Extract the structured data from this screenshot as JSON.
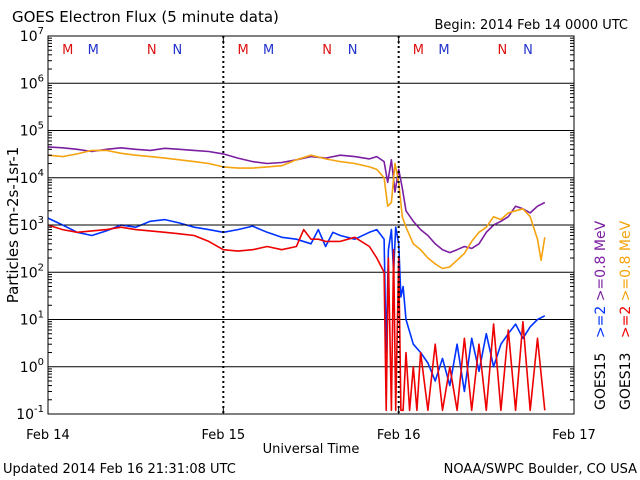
{
  "title": "GOES Electron Flux (5 minute data)",
  "begin_label": "Begin: 2014 Feb 14 0000 UTC",
  "updated_label": "Updated 2014 Feb 16 21:31:08 UTC",
  "credit_label": "NOAA/SWPC Boulder, CO USA",
  "colors": {
    "purple": "#7B1FA2",
    "orange": "#F5A30E",
    "blue": "#0033FF",
    "red": "#EE0000",
    "mn_blue": "#2233CC",
    "mn_red": "#DD1111"
  },
  "chart_data": {
    "type": "line",
    "title": "GOES Electron Flux (5 minute data)",
    "xlabel": "Universal Time",
    "ylabel": "Particles cm-2s-1sr-1",
    "y_scale": "log",
    "ylim": [
      0.1,
      10000000
    ],
    "xlim": [
      0,
      72
    ],
    "x_unit": "hours since 2014 Feb 14 0000 UTC",
    "x_ticks": [
      {
        "x": 0,
        "label": "Feb 14"
      },
      {
        "x": 24,
        "label": "Feb 15"
      },
      {
        "x": 48,
        "label": "Feb 16"
      },
      {
        "x": 72,
        "label": "Feb 17"
      }
    ],
    "y_ticks": [
      {
        "value": 0.1,
        "base": "10",
        "exp": "-1"
      },
      {
        "value": 1,
        "base": "10",
        "exp": "0"
      },
      {
        "value": 10,
        "base": "10",
        "exp": "1"
      },
      {
        "value": 100,
        "base": "10",
        "exp": "2"
      },
      {
        "value": 1000,
        "base": "10",
        "exp": "3"
      },
      {
        "value": 10000,
        "base": "10",
        "exp": "4"
      },
      {
        "value": 100000,
        "base": "10",
        "exp": "5"
      },
      {
        "value": 1000000,
        "base": "10",
        "exp": "6"
      },
      {
        "value": 10000000,
        "base": "10",
        "exp": "7"
      }
    ],
    "threshold": 1000,
    "grid": true,
    "legend": [
      {
        "label": "GOES15",
        "color": "#000000"
      },
      {
        "label": ">=2",
        "color": "#0033FF"
      },
      {
        "label": ">=0.8 MeV",
        "color": "#7B1FA2"
      },
      {
        "label": "GOES13",
        "color": "#000000"
      },
      {
        "label": ">=2",
        "color": "#EE0000"
      },
      {
        "label": ">=0.8 MeV",
        "color": "#F5A30E"
      }
    ],
    "mn_markers": [
      {
        "x": 2.7,
        "label": "M",
        "color": "#DD1111"
      },
      {
        "x": 6.2,
        "label": "M",
        "color": "#2233CC"
      },
      {
        "x": 14.2,
        "label": "N",
        "color": "#DD1111"
      },
      {
        "x": 17.7,
        "label": "N",
        "color": "#2233CC"
      },
      {
        "x": 26.7,
        "label": "M",
        "color": "#DD1111"
      },
      {
        "x": 30.2,
        "label": "M",
        "color": "#2233CC"
      },
      {
        "x": 38.2,
        "label": "N",
        "color": "#DD1111"
      },
      {
        "x": 41.7,
        "label": "N",
        "color": "#2233CC"
      },
      {
        "x": 50.7,
        "label": "M",
        "color": "#DD1111"
      },
      {
        "x": 54.2,
        "label": "M",
        "color": "#2233CC"
      },
      {
        "x": 62.2,
        "label": "N",
        "color": "#DD1111"
      },
      {
        "x": 65.7,
        "label": "N",
        "color": "#2233CC"
      }
    ],
    "series": [
      {
        "name": "GOES15 >=0.8 MeV",
        "color": "#7B1FA2",
        "points": [
          [
            0,
            45000
          ],
          [
            2,
            43000
          ],
          [
            4,
            40000
          ],
          [
            6,
            36000
          ],
          [
            8,
            40000
          ],
          [
            10,
            43000
          ],
          [
            12,
            40000
          ],
          [
            14,
            38000
          ],
          [
            16,
            42000
          ],
          [
            18,
            40000
          ],
          [
            20,
            38000
          ],
          [
            22,
            36000
          ],
          [
            24,
            32000
          ],
          [
            26,
            26000
          ],
          [
            28,
            22000
          ],
          [
            30,
            20000
          ],
          [
            32,
            21000
          ],
          [
            34,
            24000
          ],
          [
            36,
            28000
          ],
          [
            38,
            26000
          ],
          [
            40,
            30000
          ],
          [
            42,
            28000
          ],
          [
            44,
            25000
          ],
          [
            45,
            28000
          ],
          [
            46,
            22000
          ],
          [
            46.5,
            8000
          ],
          [
            47,
            24000
          ],
          [
            47.5,
            5000
          ],
          [
            48,
            15000
          ],
          [
            48.5,
            6000
          ],
          [
            49,
            2000
          ],
          [
            50,
            1200
          ],
          [
            51,
            800
          ],
          [
            52,
            600
          ],
          [
            53,
            400
          ],
          [
            54,
            300
          ],
          [
            55,
            260
          ],
          [
            56,
            300
          ],
          [
            57,
            350
          ],
          [
            58,
            320
          ],
          [
            59,
            400
          ],
          [
            60,
            700
          ],
          [
            61,
            1000
          ],
          [
            62,
            1200
          ],
          [
            63,
            1500
          ],
          [
            64,
            2500
          ],
          [
            65,
            2200
          ],
          [
            66,
            1800
          ],
          [
            67,
            2500
          ],
          [
            68,
            3000
          ]
        ]
      },
      {
        "name": "GOES13 >=0.8 MeV",
        "color": "#F5A30E",
        "points": [
          [
            0,
            30000
          ],
          [
            2,
            28000
          ],
          [
            4,
            32000
          ],
          [
            6,
            38000
          ],
          [
            8,
            38000
          ],
          [
            10,
            33000
          ],
          [
            12,
            30000
          ],
          [
            14,
            28000
          ],
          [
            16,
            26000
          ],
          [
            18,
            24000
          ],
          [
            20,
            22000
          ],
          [
            22,
            20000
          ],
          [
            24,
            17000
          ],
          [
            26,
            16000
          ],
          [
            28,
            16000
          ],
          [
            30,
            17000
          ],
          [
            32,
            18000
          ],
          [
            34,
            24000
          ],
          [
            36,
            30000
          ],
          [
            38,
            25000
          ],
          [
            40,
            22000
          ],
          [
            42,
            20000
          ],
          [
            44,
            17000
          ],
          [
            45,
            15000
          ],
          [
            46,
            10000
          ],
          [
            46.5,
            2500
          ],
          [
            47,
            3000
          ],
          [
            47.5,
            20000
          ],
          [
            48,
            8000
          ],
          [
            48.5,
            1500
          ],
          [
            49,
            900
          ],
          [
            50,
            400
          ],
          [
            51,
            300
          ],
          [
            52,
            200
          ],
          [
            53,
            150
          ],
          [
            54,
            120
          ],
          [
            55,
            130
          ],
          [
            56,
            180
          ],
          [
            57,
            250
          ],
          [
            58,
            450
          ],
          [
            59,
            700
          ],
          [
            60,
            900
          ],
          [
            61,
            1500
          ],
          [
            62,
            1300
          ],
          [
            63,
            1800
          ],
          [
            64,
            2000
          ],
          [
            65,
            2200
          ],
          [
            66,
            1500
          ],
          [
            67,
            500
          ],
          [
            67.5,
            180
          ],
          [
            68,
            550
          ]
        ]
      },
      {
        "name": "GOES15 >=2",
        "color": "#0033FF",
        "points": [
          [
            0,
            1400
          ],
          [
            2,
            1000
          ],
          [
            4,
            700
          ],
          [
            6,
            600
          ],
          [
            8,
            750
          ],
          [
            10,
            1000
          ],
          [
            12,
            900
          ],
          [
            14,
            1200
          ],
          [
            16,
            1300
          ],
          [
            18,
            1100
          ],
          [
            20,
            900
          ],
          [
            22,
            800
          ],
          [
            24,
            700
          ],
          [
            26,
            800
          ],
          [
            28,
            950
          ],
          [
            30,
            700
          ],
          [
            32,
            550
          ],
          [
            34,
            500
          ],
          [
            36,
            400
          ],
          [
            37,
            800
          ],
          [
            38,
            350
          ],
          [
            39,
            700
          ],
          [
            40,
            600
          ],
          [
            42,
            500
          ],
          [
            44,
            700
          ],
          [
            45,
            800
          ],
          [
            46,
            500
          ],
          [
            46.3,
            2
          ],
          [
            46.6,
            300
          ],
          [
            47,
            800
          ],
          [
            47.3,
            100
          ],
          [
            47.6,
            900
          ],
          [
            48,
            400
          ],
          [
            48.3,
            30
          ],
          [
            48.6,
            50
          ],
          [
            49,
            10
          ],
          [
            50,
            3
          ],
          [
            51,
            2
          ],
          [
            52,
            1.2
          ],
          [
            53,
            0.5
          ],
          [
            54,
            1.5
          ],
          [
            55,
            0.4
          ],
          [
            56,
            3
          ],
          [
            57,
            0.3
          ],
          [
            58,
            4
          ],
          [
            59,
            0.8
          ],
          [
            60,
            5
          ],
          [
            61,
            1
          ],
          [
            62,
            3
          ],
          [
            63,
            5
          ],
          [
            64,
            8
          ],
          [
            65,
            4
          ],
          [
            66,
            7
          ],
          [
            67,
            10
          ],
          [
            68,
            12
          ]
        ]
      },
      {
        "name": "GOES13 >=2",
        "color": "#EE0000",
        "points": [
          [
            0,
            1000
          ],
          [
            2,
            800
          ],
          [
            4,
            700
          ],
          [
            6,
            750
          ],
          [
            8,
            800
          ],
          [
            10,
            900
          ],
          [
            12,
            800
          ],
          [
            14,
            750
          ],
          [
            16,
            700
          ],
          [
            18,
            650
          ],
          [
            20,
            600
          ],
          [
            22,
            450
          ],
          [
            24,
            300
          ],
          [
            26,
            280
          ],
          [
            28,
            300
          ],
          [
            30,
            350
          ],
          [
            32,
            300
          ],
          [
            34,
            350
          ],
          [
            35,
            800
          ],
          [
            36,
            500
          ],
          [
            37,
            500
          ],
          [
            38,
            450
          ],
          [
            40,
            450
          ],
          [
            42,
            550
          ],
          [
            44,
            350
          ],
          [
            45,
            200
          ],
          [
            46,
            100
          ],
          [
            46.3,
            0.12
          ],
          [
            46.6,
            200
          ],
          [
            47,
            0.12
          ],
          [
            47.3,
            300
          ],
          [
            47.6,
            0.12
          ],
          [
            48,
            200
          ],
          [
            48.3,
            0.12
          ],
          [
            48.6,
            0.12
          ],
          [
            49,
            2
          ],
          [
            49.5,
            0.12
          ],
          [
            50,
            1
          ],
          [
            50.5,
            0.12
          ],
          [
            51,
            2
          ],
          [
            52,
            0.12
          ],
          [
            53,
            3
          ],
          [
            54,
            0.12
          ],
          [
            55,
            1
          ],
          [
            56,
            0.12
          ],
          [
            57,
            4
          ],
          [
            58,
            0.12
          ],
          [
            59,
            3
          ],
          [
            60,
            0.12
          ],
          [
            61,
            8
          ],
          [
            62,
            0.12
          ],
          [
            63,
            6
          ],
          [
            64,
            0.12
          ],
          [
            65,
            9
          ],
          [
            66,
            0.12
          ],
          [
            67,
            4
          ],
          [
            68,
            0.12
          ]
        ]
      }
    ]
  }
}
